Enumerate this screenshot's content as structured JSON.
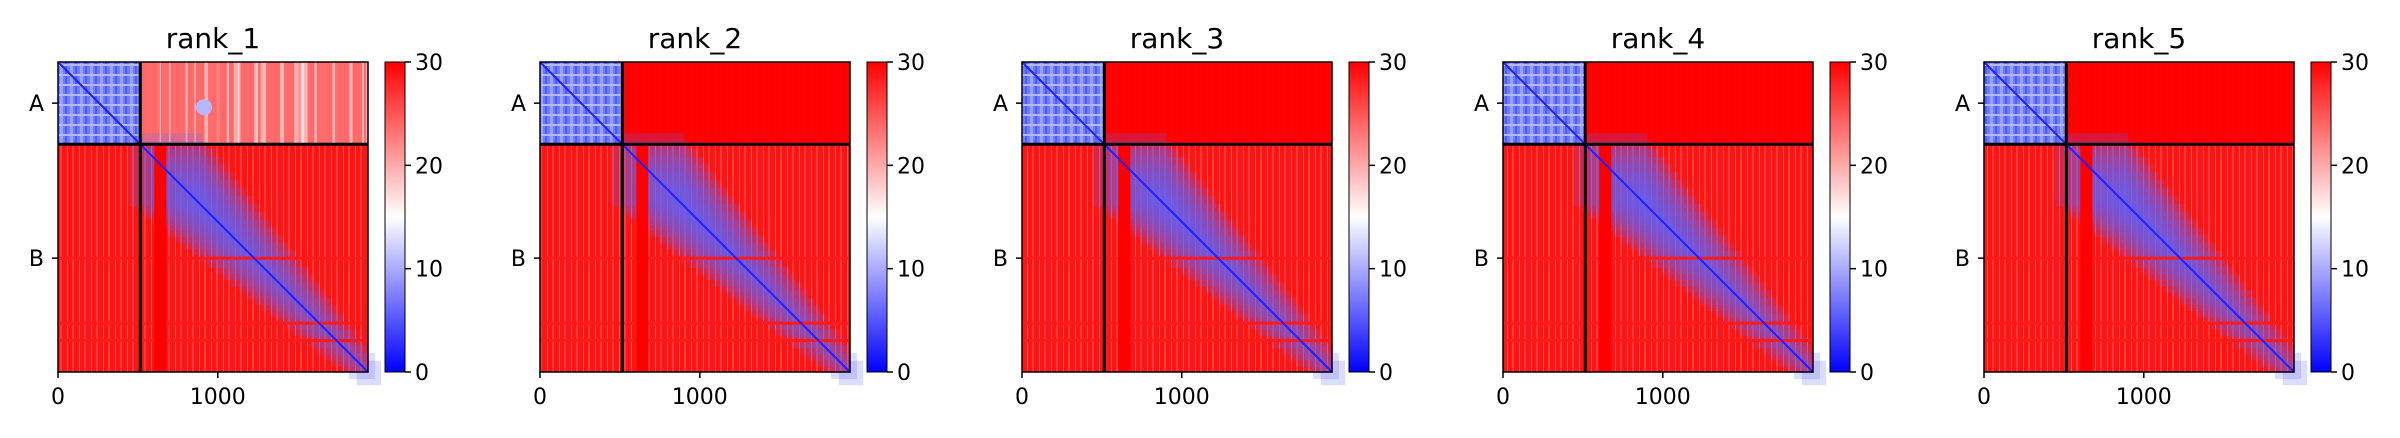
{
  "chart_data": [
    {
      "type": "heatmap",
      "title": "rank_1",
      "x_ticks": [
        0,
        1000
      ],
      "y_tick_labels": [
        "A",
        "B"
      ],
      "chain_break": 515,
      "length": 1940,
      "colorbar": {
        "ticks": [
          0,
          10,
          20,
          30
        ],
        "range": [
          0,
          30
        ],
        "colormap": "bwr"
      },
      "offdiag_level": 0.78
    },
    {
      "type": "heatmap",
      "title": "rank_2",
      "x_ticks": [
        0,
        1000
      ],
      "y_tick_labels": [
        "A",
        "B"
      ],
      "chain_break": 515,
      "length": 1940,
      "colorbar": {
        "ticks": [
          0,
          10,
          20,
          30
        ],
        "range": [
          0,
          30
        ],
        "colormap": "bwr"
      },
      "offdiag_level": 1.0
    },
    {
      "type": "heatmap",
      "title": "rank_3",
      "x_ticks": [
        0,
        1000
      ],
      "y_tick_labels": [
        "A",
        "B"
      ],
      "chain_break": 515,
      "length": 1940,
      "colorbar": {
        "ticks": [
          0,
          10,
          20,
          30
        ],
        "range": [
          0,
          30
        ],
        "colormap": "bwr"
      },
      "offdiag_level": 1.0
    },
    {
      "type": "heatmap",
      "title": "rank_4",
      "x_ticks": [
        0,
        1000
      ],
      "y_tick_labels": [
        "A",
        "B"
      ],
      "chain_break": 515,
      "length": 1940,
      "colorbar": {
        "ticks": [
          0,
          10,
          20,
          30
        ],
        "range": [
          0,
          30
        ],
        "colormap": "bwr"
      },
      "offdiag_level": 1.0
    },
    {
      "type": "heatmap",
      "title": "rank_5",
      "x_ticks": [
        0,
        1000
      ],
      "y_tick_labels": [
        "A",
        "B"
      ],
      "chain_break": 515,
      "length": 1940,
      "colorbar": {
        "ticks": [
          0,
          10,
          20,
          30
        ],
        "range": [
          0,
          30
        ],
        "colormap": "bwr"
      },
      "offdiag_level": 1.0
    }
  ]
}
